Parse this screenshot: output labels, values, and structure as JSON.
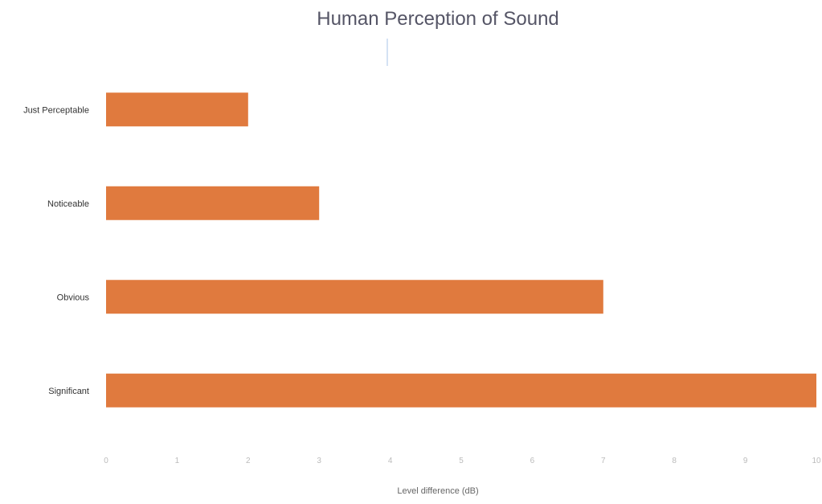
{
  "chart_data": {
    "type": "bar",
    "orientation": "horizontal",
    "title": "Human Perception of Sound",
    "xlabel": "Level difference (dB)",
    "ylabel": "",
    "categories": [
      "Just Perceptable",
      "Noticeable",
      "Obvious",
      "Significant"
    ],
    "values": [
      2,
      3,
      7,
      10
    ],
    "xlim": [
      0,
      10
    ],
    "xticks": [
      "0",
      "1",
      "2",
      "3",
      "4",
      "5",
      "6",
      "7",
      "8",
      "9",
      "10"
    ],
    "grid": false,
    "legend": "none",
    "colors": {
      "bar": "#e07a3e",
      "title": "#555566",
      "category_label": "#333333",
      "tick_label": "#bbbbbb",
      "axis_label": "#666666",
      "title_marker": "#aac4e8"
    }
  }
}
